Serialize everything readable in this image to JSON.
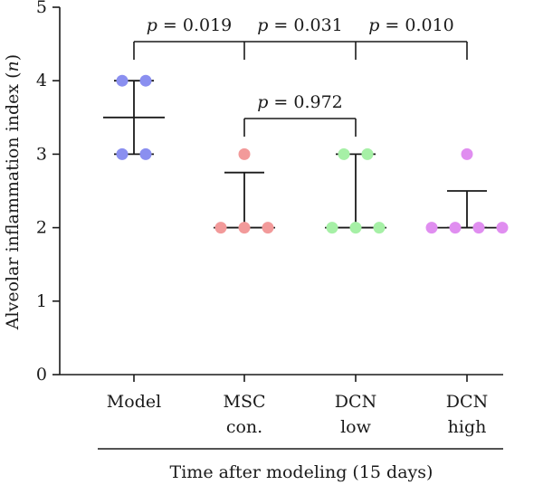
{
  "chart_data": {
    "type": "scatter",
    "ylabel_main": "Alveolar inflammation index (",
    "ylabel_var": "n",
    "ylabel_close": ")",
    "xlabel": "Time after modeling (15 days)",
    "ylim": [
      0,
      5
    ],
    "yticks": [
      "0",
      "1",
      "2",
      "3",
      "4",
      "5"
    ],
    "categories": [
      {
        "line1": "Model",
        "line2": ""
      },
      {
        "line1": "MSC",
        "line2": "con."
      },
      {
        "line1": "DCN",
        "line2": "low"
      },
      {
        "line1": "DCN",
        "line2": "high"
      }
    ],
    "series": [
      {
        "category": "Model",
        "color": "#8a8ff0",
        "points": [
          3,
          3,
          4,
          4
        ],
        "mean": 3.5,
        "upper": 4,
        "lower": 3
      },
      {
        "category": "MSC con.",
        "color": "#f29a9a",
        "points": [
          2,
          2,
          2,
          3
        ],
        "mean": 2.0,
        "upper": 2.75,
        "lower": 2
      },
      {
        "category": "DCN low",
        "color": "#a6f0a6",
        "points": [
          2,
          2,
          2,
          3,
          3
        ],
        "mean": 2.0,
        "upper": 3,
        "lower": 2
      },
      {
        "category": "DCN high",
        "color": "#e08ef0",
        "points": [
          2,
          2,
          2,
          2,
          3
        ],
        "mean": 2.0,
        "upper": 2.5,
        "lower": 2
      }
    ],
    "comparisons": [
      {
        "from": 0,
        "to": [
          1,
          2,
          3
        ],
        "labels": [
          "p = 0.019",
          "p = 0.031",
          "p = 0.010"
        ]
      },
      {
        "from": 1,
        "to": [
          2
        ],
        "labels": [
          "p = 0.972"
        ]
      }
    ]
  }
}
